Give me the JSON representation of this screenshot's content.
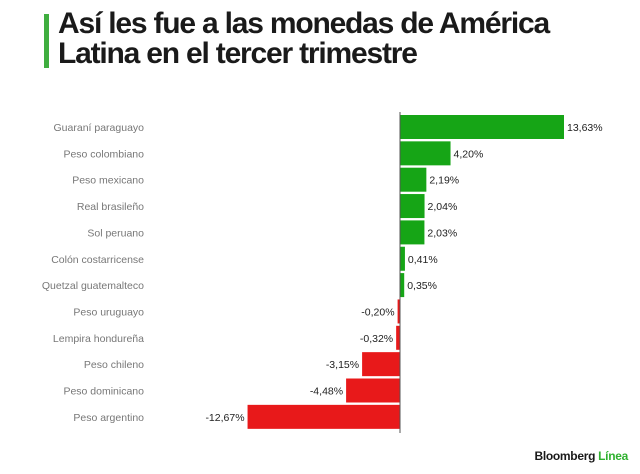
{
  "title": "Así les fue a las monedas de América Latina en el tercer trimestre",
  "logo": {
    "part1": "Bloomberg",
    "part2": "Línea"
  },
  "colors": {
    "positive": "#16a516",
    "negative": "#e8191a",
    "accent": "#3fae3f"
  },
  "chart_data": {
    "type": "bar",
    "orientation": "horizontal",
    "categories": [
      "Guaraní paraguayo",
      "Peso colombiano",
      "Peso mexicano",
      "Real brasileño",
      "Sol peruano",
      "Colón costarricense",
      "Quetzal guatemalteco",
      "Peso uruguayo",
      "Lempira hondureña",
      "Peso chileno",
      "Peso dominicano",
      "Peso argentino"
    ],
    "values": [
      13.63,
      4.2,
      2.19,
      2.04,
      2.03,
      0.41,
      0.35,
      -0.2,
      -0.32,
      -3.15,
      -4.48,
      -12.67
    ],
    "labels": [
      "13,63%",
      "4,20%",
      "2,19%",
      "2,04%",
      "2,03%",
      "0,41%",
      "0,35%",
      "-0,20%",
      "-0,32%",
      "-3,15%",
      "-4,48%",
      "-12,67%"
    ],
    "unit": "%",
    "grid": false
  }
}
